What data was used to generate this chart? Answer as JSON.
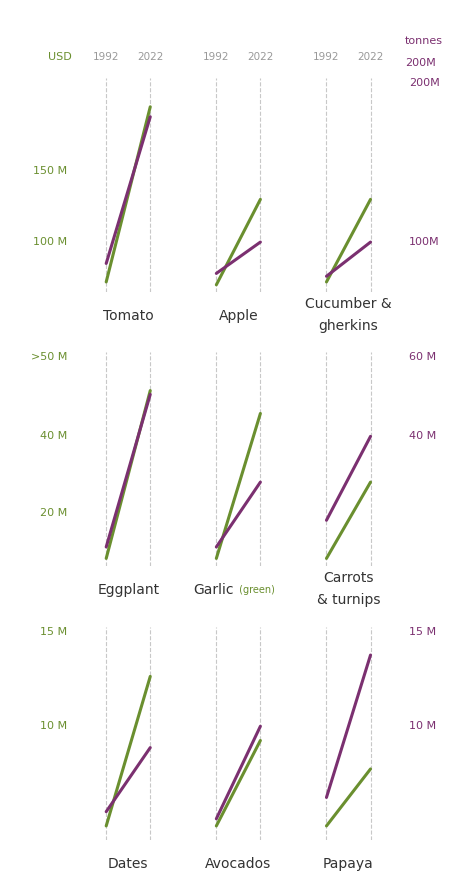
{
  "green_color": "#6a8f2f",
  "purple_color": "#7b3070",
  "background": "#ffffff",
  "header_year_color": "#999999",
  "rows": [
    {
      "row_label_left": "",
      "yticks_left": [
        100,
        150
      ],
      "ytick_labels_left": [
        "100 M",
        "150 M"
      ],
      "right_top_label": "200M",
      "yticks_right": [
        100
      ],
      "ytick_labels_right": [
        "100M"
      ],
      "ymin": 65,
      "ymax": 215,
      "charts": [
        {
          "name": "Tomato",
          "name2": null,
          "green_1992": 72,
          "green_2022": 195,
          "purple_1992": 85,
          "purple_2022": 188
        },
        {
          "name": "Apple",
          "name2": null,
          "green_1992": 70,
          "green_2022": 130,
          "purple_1992": 78,
          "purple_2022": 100
        },
        {
          "name": "Cucumber &\ngherkins",
          "name2": null,
          "green_1992": 72,
          "green_2022": 130,
          "purple_1992": 76,
          "purple_2022": 100
        }
      ]
    },
    {
      "row_label_left": ">50 M",
      "yticks_left": [
        20,
        40
      ],
      "ytick_labels_left": [
        "20 M",
        "40 M"
      ],
      "right_top_label": "60 M",
      "yticks_right": [
        40
      ],
      "ytick_labels_right": [
        "40 M"
      ],
      "ymin": 6,
      "ymax": 62,
      "charts": [
        {
          "name": "Eggplant",
          "name2": null,
          "green_1992": 8,
          "green_2022": 52,
          "purple_1992": 11,
          "purple_2022": 51
        },
        {
          "name": "Garlic",
          "name2": "(green)",
          "green_1992": 8,
          "green_2022": 46,
          "purple_1992": 11,
          "purple_2022": 28
        },
        {
          "name": "Carrots\n& turnips",
          "name2": null,
          "green_1992": 8,
          "green_2022": 28,
          "purple_1992": 18,
          "purple_2022": 40
        }
      ]
    },
    {
      "row_label_left": "15 M",
      "yticks_left": [
        10
      ],
      "ytick_labels_left": [
        "10 M"
      ],
      "right_top_label": "15 M",
      "yticks_right": [
        10
      ],
      "ytick_labels_right": [
        "10 M"
      ],
      "ymin": 2,
      "ymax": 17,
      "charts": [
        {
          "name": "Dates",
          "name2": null,
          "green_1992": 3,
          "green_2022": 13.5,
          "purple_1992": 4,
          "purple_2022": 8.5
        },
        {
          "name": "Avocados",
          "name2": null,
          "green_1992": 3,
          "green_2022": 9,
          "purple_1992": 3.5,
          "purple_2022": 10
        },
        {
          "name": "Papaya",
          "name2": null,
          "green_1992": 3,
          "green_2022": 7,
          "purple_1992": 5,
          "purple_2022": 15
        }
      ]
    }
  ]
}
